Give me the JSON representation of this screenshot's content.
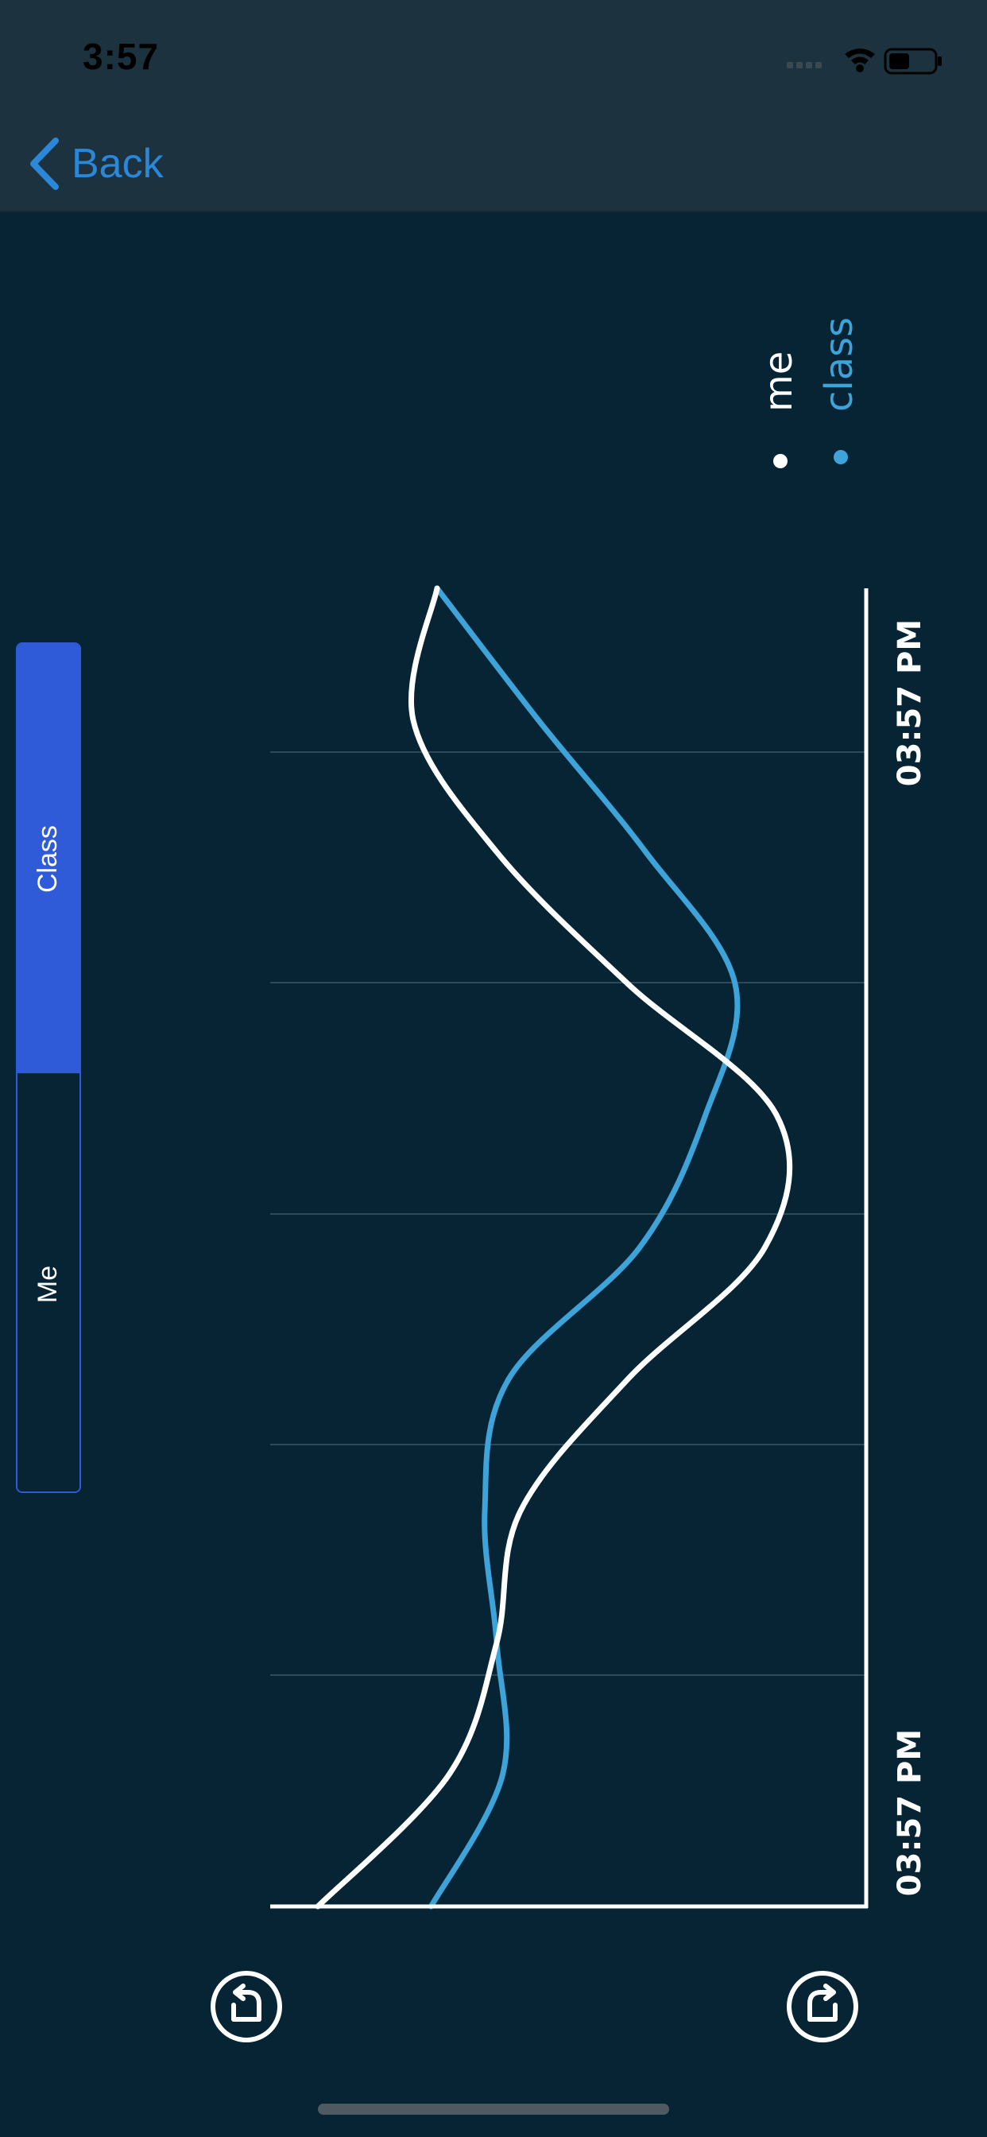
{
  "status_bar": {
    "time": "3:57"
  },
  "nav": {
    "back_label": "Back"
  },
  "segmented_control": {
    "options": [
      "Class",
      "Me"
    ],
    "selected": "Class"
  },
  "icons": {
    "back": "chevron-left-icon",
    "signal": "signal-icon",
    "wifi": "wifi-icon",
    "battery": "battery-icon",
    "rotate_left": "rotate-left-icon",
    "rotate_right": "rotate-right-icon"
  },
  "colors": {
    "background": "#062433",
    "bar_background": "#1c333f",
    "accent_blue": "#2b87d8",
    "segment_active": "#2f5bd8",
    "series_me": "#ffffff",
    "series_class": "#3ea3d8",
    "grid": "#2e4a57"
  },
  "chart_data": {
    "type": "line",
    "orientation": "rotated-90",
    "x_tick_labels": [
      "03:57 PM",
      "03:57 PM"
    ],
    "ylim": [
      0,
      100
    ],
    "grid": true,
    "gridlines": 5,
    "legend_position": "top-right",
    "series": [
      {
        "name": "me",
        "color": "#ffffff",
        "values": [
          8,
          30,
          38,
          42,
          60,
          83,
          85,
          60,
          38,
          24,
          28
        ]
      },
      {
        "name": "class",
        "color": "#3ea3d8",
        "values": [
          27,
          39,
          38,
          36,
          40,
          62,
          73,
          78,
          63,
          45,
          28
        ]
      }
    ]
  }
}
